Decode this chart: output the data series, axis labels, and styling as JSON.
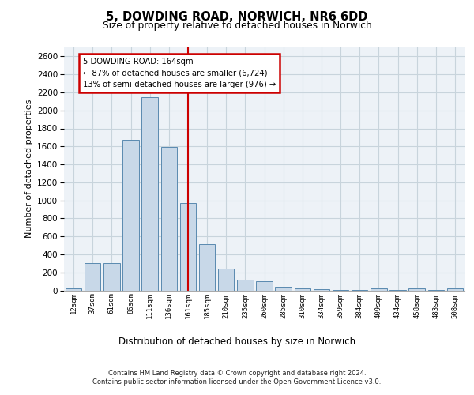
{
  "title_line1": "5, DOWDING ROAD, NORWICH, NR6 6DD",
  "title_line2": "Size of property relative to detached houses in Norwich",
  "xlabel": "Distribution of detached houses by size in Norwich",
  "ylabel": "Number of detached properties",
  "categories": [
    "12sqm",
    "37sqm",
    "61sqm",
    "86sqm",
    "111sqm",
    "136sqm",
    "161sqm",
    "185sqm",
    "210sqm",
    "235sqm",
    "260sqm",
    "285sqm",
    "310sqm",
    "334sqm",
    "359sqm",
    "384sqm",
    "409sqm",
    "434sqm",
    "458sqm",
    "483sqm",
    "508sqm"
  ],
  "values": [
    20,
    300,
    300,
    1670,
    2150,
    1590,
    970,
    510,
    245,
    120,
    100,
    40,
    25,
    10,
    5,
    5,
    20,
    5,
    20,
    5,
    20
  ],
  "bar_color": "#c8d8e8",
  "bar_edge_color": "#5a8ab0",
  "vline_index": 6,
  "vline_color": "#cc0000",
  "annotation_line1": "5 DOWDING ROAD: 164sqm",
  "annotation_line2": "← 87% of detached houses are smaller (6,724)",
  "annotation_line3": "13% of semi-detached houses are larger (976) →",
  "annotation_edge_color": "#cc0000",
  "ylim_max": 2700,
  "yticks": [
    0,
    200,
    400,
    600,
    800,
    1000,
    1200,
    1400,
    1600,
    1800,
    2000,
    2200,
    2400,
    2600
  ],
  "grid_color": "#c8d4dc",
  "plot_bg_color": "#edf2f7",
  "footer_line1": "Contains HM Land Registry data © Crown copyright and database right 2024.",
  "footer_line2": "Contains public sector information licensed under the Open Government Licence v3.0."
}
